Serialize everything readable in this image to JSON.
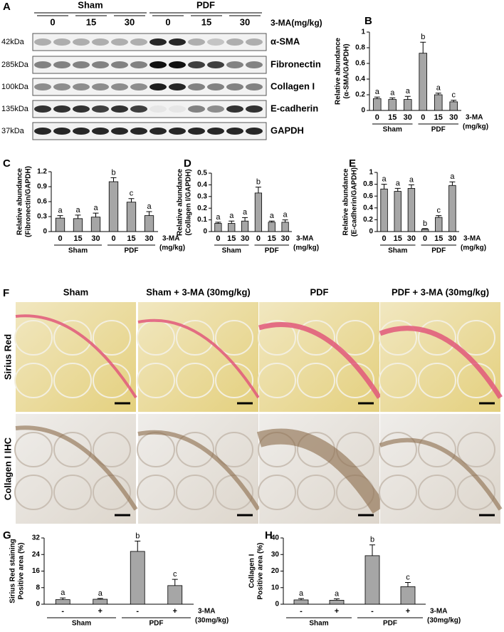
{
  "panels": [
    "A",
    "B",
    "C",
    "D",
    "E",
    "F",
    "G",
    "H"
  ],
  "blot": {
    "groups": [
      "Sham",
      "PDF"
    ],
    "treatment": "3-MA(mg/kg)",
    "doses": [
      "0",
      "15",
      "30",
      "0",
      "15",
      "30"
    ],
    "rows": [
      {
        "mw": "42kDa",
        "name": "α-SMA"
      },
      {
        "mw": "285kDa",
        "name": "Fibronectin"
      },
      {
        "mw": "100kDa",
        "name": "Collagen I"
      },
      {
        "mw": "135kDa",
        "name": "E-cadherin"
      },
      {
        "mw": "37kDa",
        "name": "GAPDH"
      }
    ]
  },
  "histology": {
    "columns": [
      "Sham",
      "Sham + 3-MA (30mg/kg)",
      "PDF",
      "PDF + 3-MA (30mg/kg)"
    ],
    "rows": [
      "Sirius Red",
      "Collagen I IHC"
    ]
  },
  "chart_data": [
    {
      "type": "bar",
      "ylabel": [
        "Relative abundance",
        "(α-SMA/GAPDH)"
      ],
      "categories": [
        "0",
        "15",
        "30",
        "0",
        "15",
        "30"
      ],
      "groups": [
        "Sham",
        "PDF"
      ],
      "xlabel": [
        "3-MA",
        "(mg/kg)"
      ],
      "values": [
        0.15,
        0.14,
        0.14,
        0.73,
        0.2,
        0.11
      ],
      "errors": [
        0.02,
        0.02,
        0.04,
        0.14,
        0.02,
        0.02
      ],
      "annotations": [
        "a",
        "a",
        "a",
        "b",
        "a",
        "c"
      ],
      "ylim": [
        0,
        1
      ],
      "yticks": [
        0,
        0.2,
        0.4,
        0.6,
        0.8,
        1
      ],
      "color": "#a6a6a6"
    },
    {
      "type": "bar",
      "ylabel": [
        "Relative abundance",
        "(Fibronectin/GAPDH)"
      ],
      "categories": [
        "0",
        "15",
        "30",
        "0",
        "15",
        "30"
      ],
      "groups": [
        "Sham",
        "PDF"
      ],
      "xlabel": [
        "3-MA",
        "(mg/kg)"
      ],
      "values": [
        0.27,
        0.26,
        0.29,
        1.0,
        0.59,
        0.32
      ],
      "errors": [
        0.05,
        0.07,
        0.08,
        0.08,
        0.07,
        0.08
      ],
      "annotations": [
        "a",
        "a",
        "a",
        "b",
        "c",
        "a"
      ],
      "ylim": [
        0,
        1.2
      ],
      "yticks": [
        0,
        0.3,
        0.6,
        0.9,
        1.2
      ],
      "color": "#a6a6a6"
    },
    {
      "type": "bar",
      "ylabel": [
        "Relative abundance",
        "(Collagen I/GAPDH)"
      ],
      "categories": [
        "0",
        "15",
        "30",
        "0",
        "15",
        "30"
      ],
      "groups": [
        "Sham",
        "PDF"
      ],
      "xlabel": [
        "3-MA",
        "(mg/kg)"
      ],
      "values": [
        0.07,
        0.07,
        0.09,
        0.33,
        0.08,
        0.08
      ],
      "errors": [
        0.01,
        0.02,
        0.03,
        0.05,
        0.01,
        0.02
      ],
      "annotations": [
        "a",
        "a",
        "a",
        "b",
        "a",
        "a"
      ],
      "ylim": [
        0,
        0.5
      ],
      "yticks": [
        0,
        0.1,
        0.2,
        0.3,
        0.4,
        0.5
      ],
      "color": "#a6a6a6"
    },
    {
      "type": "bar",
      "ylabel": [
        "Relative abundance",
        "(E-cadherin/GAPDH)"
      ],
      "categories": [
        "0",
        "15",
        "30",
        "0",
        "15",
        "30"
      ],
      "groups": [
        "Sham",
        "PDF"
      ],
      "xlabel": [
        "3-MA",
        "(mg/kg)"
      ],
      "values": [
        0.72,
        0.68,
        0.73,
        0.04,
        0.24,
        0.78
      ],
      "errors": [
        0.08,
        0.05,
        0.06,
        0.01,
        0.03,
        0.06
      ],
      "annotations": [
        "a",
        "a",
        "a",
        "b",
        "c",
        "a"
      ],
      "ylim": [
        0,
        1
      ],
      "yticks": [
        0,
        0.2,
        0.4,
        0.6,
        0.8,
        1
      ],
      "color": "#a6a6a6"
    },
    {
      "type": "bar",
      "ylabel": [
        "Sirius Red staining",
        "Positive area (%)"
      ],
      "categories": [
        "-",
        "+",
        "-",
        "+"
      ],
      "groups": [
        "Sham",
        "PDF"
      ],
      "xlabel": [
        "3-MA",
        "(30mg/kg)"
      ],
      "values": [
        2.2,
        2.4,
        25.5,
        9.0
      ],
      "errors": [
        0.8,
        0.4,
        5.0,
        3.0
      ],
      "annotations": [
        "a",
        "a",
        "b",
        "c"
      ],
      "ylim": [
        0,
        32
      ],
      "yticks": [
        0,
        8,
        16,
        24,
        32
      ],
      "color": "#a6a6a6"
    },
    {
      "type": "bar",
      "ylabel": [
        "Collagen I",
        "Positive area (%)"
      ],
      "categories": [
        "-",
        "+",
        "-",
        "+"
      ],
      "groups": [
        "Sham",
        "PDF"
      ],
      "xlabel": [
        "3-MA",
        "(30mg/kg)"
      ],
      "values": [
        2.6,
        2.4,
        29.3,
        10.6
      ],
      "errors": [
        0.8,
        0.8,
        6.5,
        2.5
      ],
      "annotations": [
        "a",
        "a",
        "b",
        "c"
      ],
      "ylim": [
        0,
        40
      ],
      "yticks": [
        0,
        10,
        20,
        30,
        40
      ],
      "color": "#a6a6a6"
    }
  ]
}
